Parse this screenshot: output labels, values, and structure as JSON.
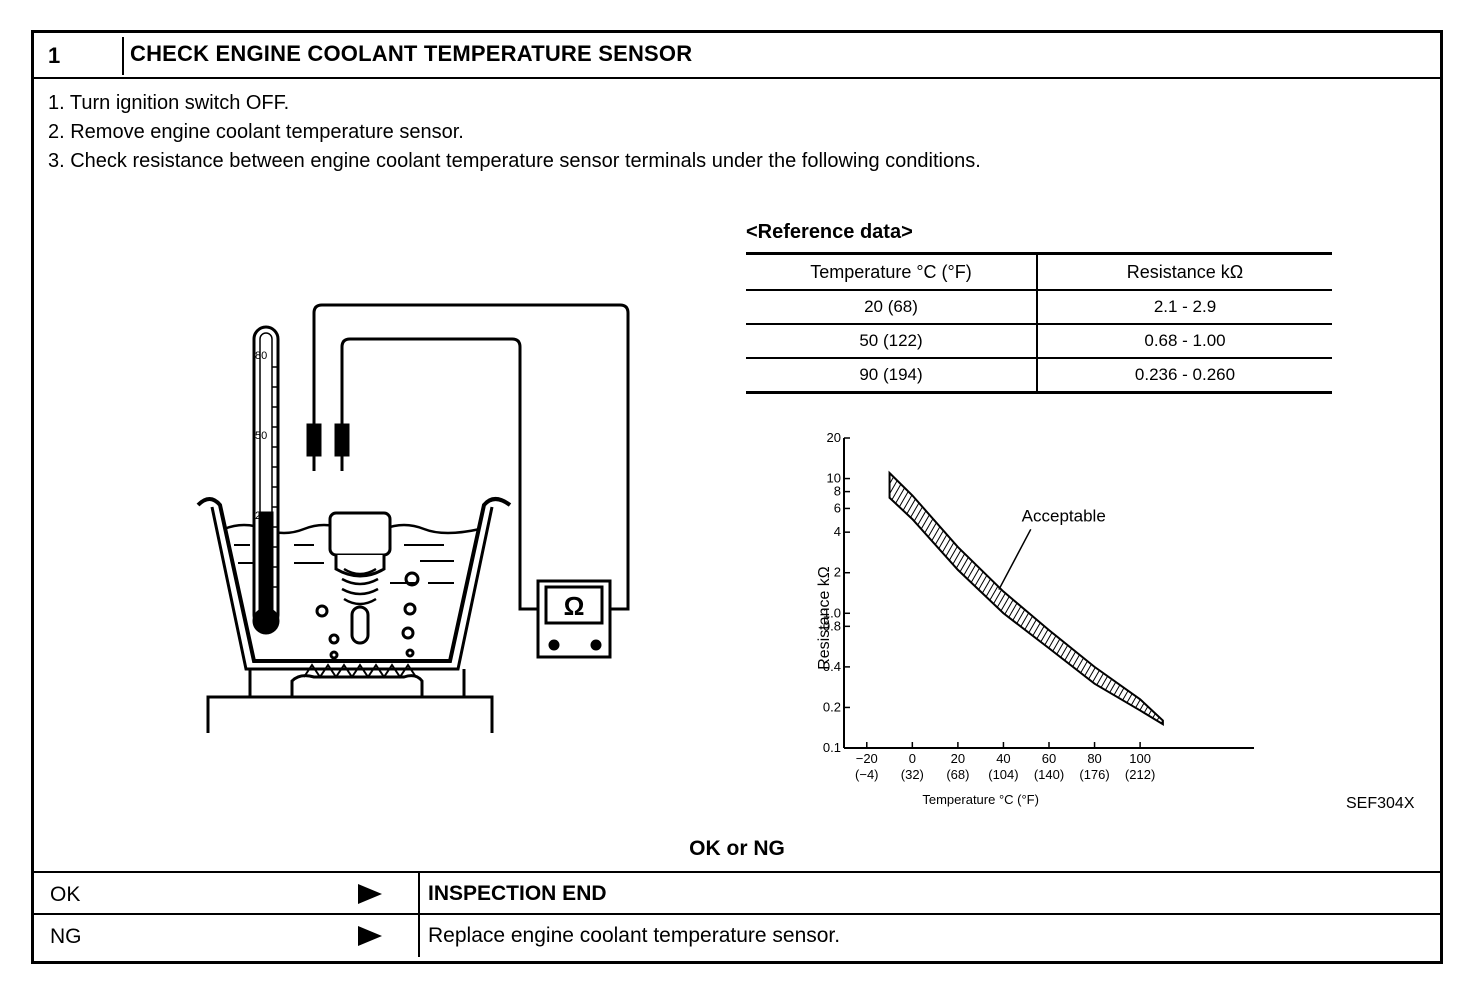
{
  "step": {
    "number": "1",
    "title": "CHECK ENGINE COOLANT TEMPERATURE SENSOR"
  },
  "instructions": [
    "1.  Turn ignition switch OFF.",
    "2.  Remove engine coolant temperature sensor.",
    "3.  Check resistance between engine coolant temperature sensor terminals under the following conditions."
  ],
  "reference": {
    "title": "<Reference data>",
    "headers": [
      "Temperature °C (°F)",
      "Resistance kΩ"
    ],
    "rows": [
      [
        "20 (68)",
        "2.1 - 2.9"
      ],
      [
        "50 (122)",
        "0.68 - 1.00"
      ],
      [
        "90 (194)",
        "0.236 - 0.260"
      ]
    ]
  },
  "illustration": {
    "thermometer_marks": [
      "80",
      "50",
      "20"
    ],
    "meter_symbol": "Ω"
  },
  "chart_data": {
    "type": "area",
    "ylabel": "Resistance kΩ",
    "xlabel": "Temperature °C (°F)",
    "y_scale": "log",
    "ylim": [
      0.1,
      20
    ],
    "xlim": [
      -30,
      150
    ],
    "y_ticks": [
      {
        "v": 20,
        "label": "20"
      },
      {
        "v": 10,
        "label": "10"
      },
      {
        "v": 8,
        "label": "8"
      },
      {
        "v": 6,
        "label": "6"
      },
      {
        "v": 4,
        "label": "4"
      },
      {
        "v": 2,
        "label": "2"
      },
      {
        "v": 1.0,
        "label": "1.0"
      },
      {
        "v": 0.8,
        "label": "0.8"
      },
      {
        "v": 0.4,
        "label": "0.4"
      },
      {
        "v": 0.2,
        "label": "0.2"
      },
      {
        "v": 0.1,
        "label": "0.1"
      }
    ],
    "x_ticks": [
      {
        "v": -20,
        "label": "−20",
        "sub": "(−4)"
      },
      {
        "v": 0,
        "label": "0",
        "sub": "(32)"
      },
      {
        "v": 20,
        "label": "20",
        "sub": "(68)"
      },
      {
        "v": 40,
        "label": "40",
        "sub": "(104)"
      },
      {
        "v": 60,
        "label": "60",
        "sub": "(140)"
      },
      {
        "v": 80,
        "label": "80",
        "sub": "(176)"
      },
      {
        "v": 100,
        "label": "100",
        "sub": "(212)"
      }
    ],
    "band_upper": [
      [
        -10,
        11
      ],
      [
        0,
        7.5
      ],
      [
        20,
        3.1
      ],
      [
        40,
        1.45
      ],
      [
        60,
        0.75
      ],
      [
        80,
        0.4
      ],
      [
        100,
        0.23
      ],
      [
        110,
        0.16
      ]
    ],
    "band_lower": [
      [
        -10,
        7.2
      ],
      [
        0,
        5.0
      ],
      [
        20,
        2.1
      ],
      [
        40,
        1.0
      ],
      [
        60,
        0.55
      ],
      [
        80,
        0.3
      ],
      [
        100,
        0.19
      ],
      [
        110,
        0.15
      ]
    ],
    "annotation": "Acceptable"
  },
  "figure_code": "SEF304X",
  "decision": "OK or NG",
  "results": [
    {
      "label": "OK",
      "text": "INSPECTION END"
    },
    {
      "label": "NG",
      "text": "Replace engine coolant temperature sensor."
    }
  ]
}
